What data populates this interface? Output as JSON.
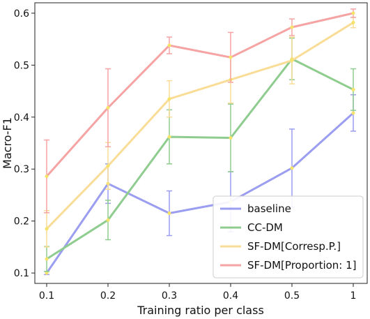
{
  "chart_data": {
    "type": "line",
    "xlabel": "Training ratio per class",
    "ylabel": "Macro-F1",
    "categories": [
      "0.1",
      "0.2",
      "0.3",
      "0.4",
      "0.5",
      "1"
    ],
    "yticks": [
      "0.1",
      "0.2",
      "0.3",
      "0.4",
      "0.5",
      "0.6"
    ],
    "ylim": [
      0.08,
      0.62
    ],
    "grid": false,
    "legend_position": "bottom-right",
    "series": [
      {
        "name": "baseline",
        "color": "#9a9df0",
        "values": [
          0.1,
          0.272,
          0.215,
          0.237,
          0.302,
          0.408
        ],
        "errors": [
          0.003,
          0.038,
          0.043,
          0.058,
          0.075,
          0.035
        ]
      },
      {
        "name": "CC-DM",
        "color": "#8fcc8f",
        "values": [
          0.127,
          0.202,
          0.362,
          0.36,
          0.512,
          0.453
        ],
        "errors": [
          0.024,
          0.038,
          0.052,
          0.065,
          0.04,
          0.04
        ]
      },
      {
        "name": "SF-DM[Corresp.P.]",
        "color": "#f9dc96",
        "values": [
          0.185,
          0.306,
          0.435,
          0.472,
          0.509,
          0.582
        ],
        "errors": [
          0.035,
          0.045,
          0.035,
          0.045,
          0.045,
          0.01
        ]
      },
      {
        "name": "SF-DM[Proportion: 1]",
        "color": "#f5a3a3",
        "values": [
          0.286,
          0.418,
          0.538,
          0.515,
          0.573,
          0.6
        ],
        "errors": [
          0.07,
          0.075,
          0.016,
          0.048,
          0.016,
          0.008
        ]
      }
    ]
  }
}
